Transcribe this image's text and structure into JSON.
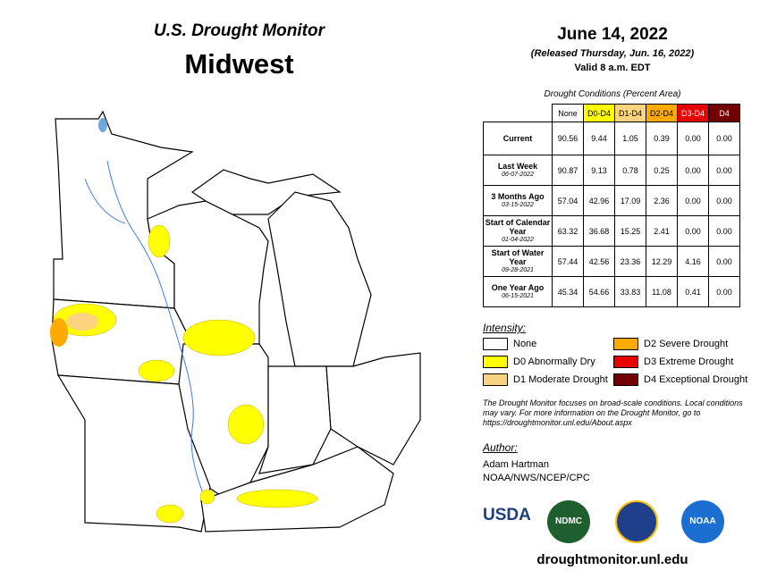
{
  "header": {
    "title": "U.S. Drought Monitor",
    "region": "Midwest",
    "date": "June 14, 2022",
    "released": "(Released Thursday, Jun. 16, 2022)",
    "valid": "Valid 8 a.m. EDT"
  },
  "table": {
    "caption": "Drought Conditions (Percent Area)",
    "columns": [
      "None",
      "D0-D4",
      "D1-D4",
      "D2-D4",
      "D3-D4",
      "D4"
    ],
    "rows": [
      {
        "label": "Current",
        "values": [
          "90.56",
          "9.44",
          "1.05",
          "0.39",
          "0.00",
          "0.00"
        ]
      },
      {
        "label": "Last Week",
        "date": "06-07-2022",
        "values": [
          "90.87",
          "9.13",
          "0.78",
          "0.25",
          "0.00",
          "0.00"
        ]
      },
      {
        "label": "3 Months Ago",
        "date": "03-15-2022",
        "values": [
          "57.04",
          "42.96",
          "17.09",
          "2.36",
          "0.00",
          "0.00"
        ]
      },
      {
        "label": "Start of Calendar Year",
        "date": "01-04-2022",
        "values": [
          "63.32",
          "36.68",
          "15.25",
          "2.41",
          "0.00",
          "0.00"
        ]
      },
      {
        "label": "Start of Water Year",
        "date": "09-28-2021",
        "values": [
          "57.44",
          "42.56",
          "23.36",
          "12.29",
          "4.16",
          "0.00"
        ]
      },
      {
        "label": "One Year Ago",
        "date": "06-15-2021",
        "values": [
          "45.34",
          "54.66",
          "33.83",
          "11.08",
          "0.41",
          "0.00"
        ]
      }
    ]
  },
  "legend": {
    "title": "Intensity:",
    "items": [
      "None",
      "D0 Abnormally Dry",
      "D1 Moderate Drought",
      "D2 Severe Drought",
      "D3 Extreme Drought",
      "D4 Exceptional Drought"
    ]
  },
  "note": "The Drought Monitor focuses on broad-scale conditions. Local conditions may vary. For more information on the Drought Monitor, go to https://droughtmonitor.unl.edu/About.aspx",
  "author": {
    "label": "Author:",
    "name": "Adam Hartman",
    "org": "NOAA/NWS/NCEP/CPC"
  },
  "logos": [
    "USDA",
    "NDMC",
    "NOAA"
  ],
  "url": "droughtmonitor.unl.edu"
}
